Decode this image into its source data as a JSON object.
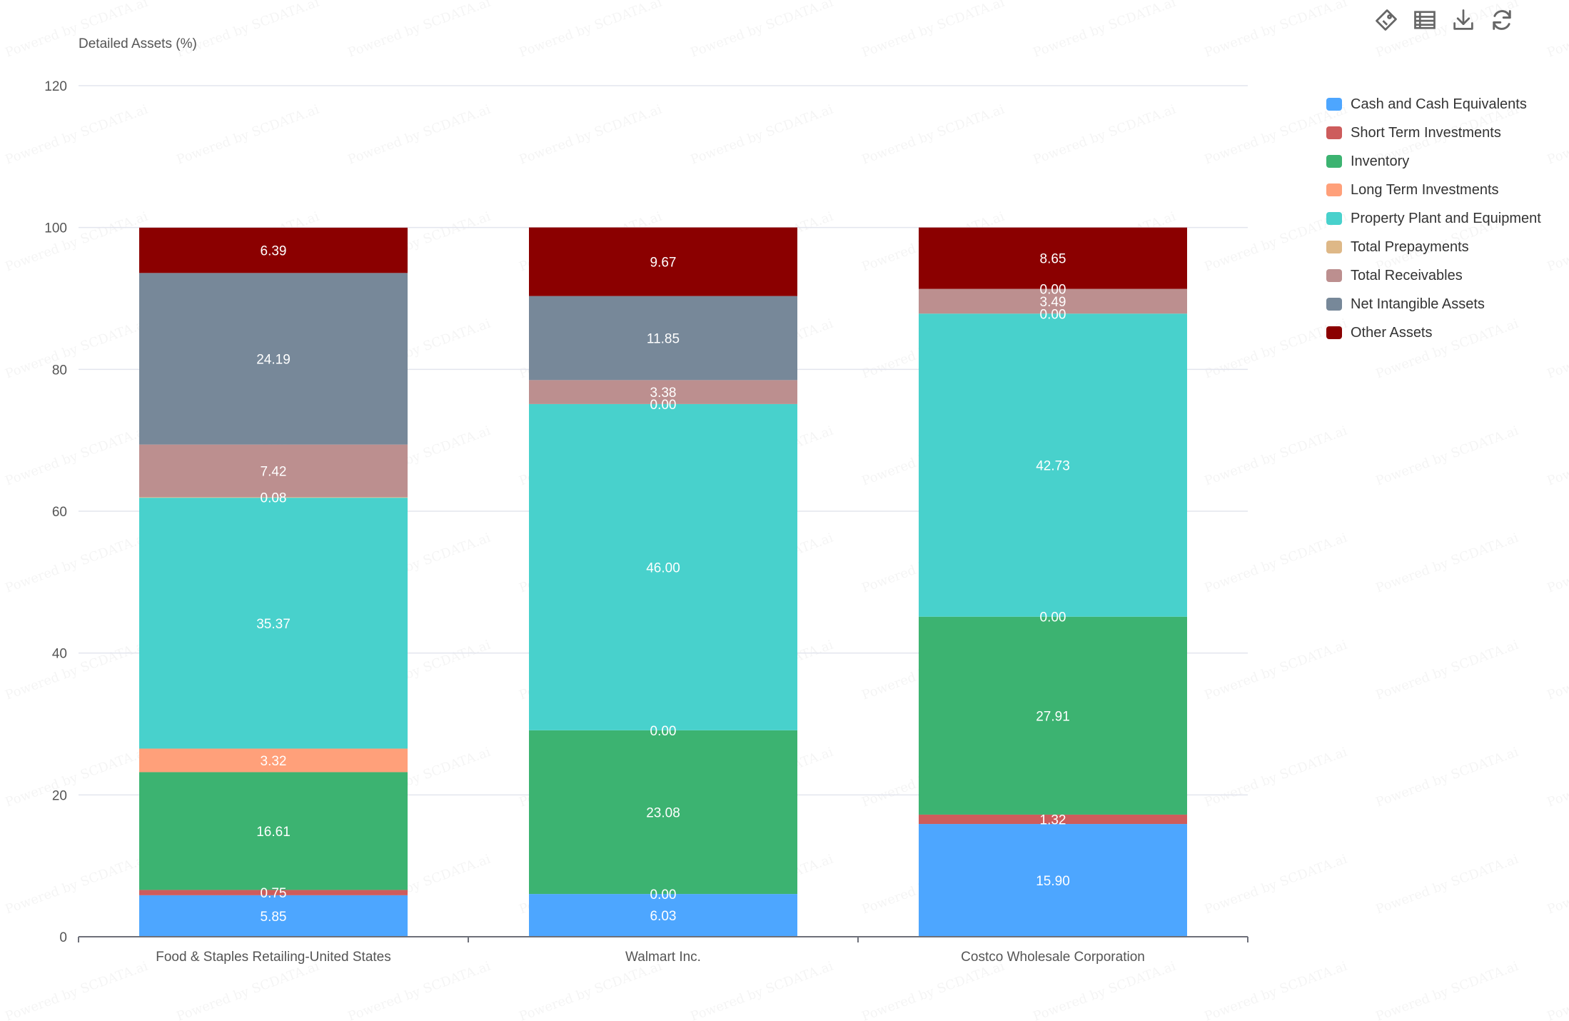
{
  "chart_data": {
    "type": "bar",
    "stacked": true,
    "ylabel": "Detailed Assets (%)",
    "ylim": [
      0,
      120
    ],
    "yticks": [
      0,
      20,
      40,
      60,
      80,
      100,
      120
    ],
    "grid": true,
    "legend_position": "right",
    "categories": [
      "Food & Staples Retailing-United States",
      "Walmart Inc.",
      "Costco Wholesale Corporation"
    ],
    "series": [
      {
        "name": "Cash and Cash Equivalents",
        "color": "#4da6ff",
        "values": [
          5.85,
          6.03,
          15.9
        ]
      },
      {
        "name": "Short Term Investments",
        "color": "#cd5c5c",
        "values": [
          0.75,
          0.0,
          1.32
        ]
      },
      {
        "name": "Inventory",
        "color": "#3cb371",
        "values": [
          16.61,
          23.08,
          27.91
        ]
      },
      {
        "name": "Long Term Investments",
        "color": "#ffa07a",
        "values": [
          3.32,
          0.0,
          0.0
        ]
      },
      {
        "name": "Property Plant and Equipment",
        "color": "#48d1cc",
        "values": [
          35.37,
          46.0,
          42.73
        ]
      },
      {
        "name": "Total Prepayments",
        "color": "#deb887",
        "values": [
          0.08,
          0.0,
          0.0
        ]
      },
      {
        "name": "Total Receivables",
        "color": "#bc8f8f",
        "values": [
          7.42,
          3.38,
          3.49
        ]
      },
      {
        "name": "Net Intangible Assets",
        "color": "#778899",
        "values": [
          24.19,
          11.85,
          0.0
        ]
      },
      {
        "name": "Other Assets",
        "color": "#8b0000",
        "values": [
          6.39,
          9.67,
          8.65
        ]
      }
    ]
  },
  "toolbar": {
    "icons": [
      "tag-icon",
      "data-view-icon",
      "download-icon",
      "refresh-icon"
    ]
  },
  "watermark": "Powered by SCDATA.ai"
}
